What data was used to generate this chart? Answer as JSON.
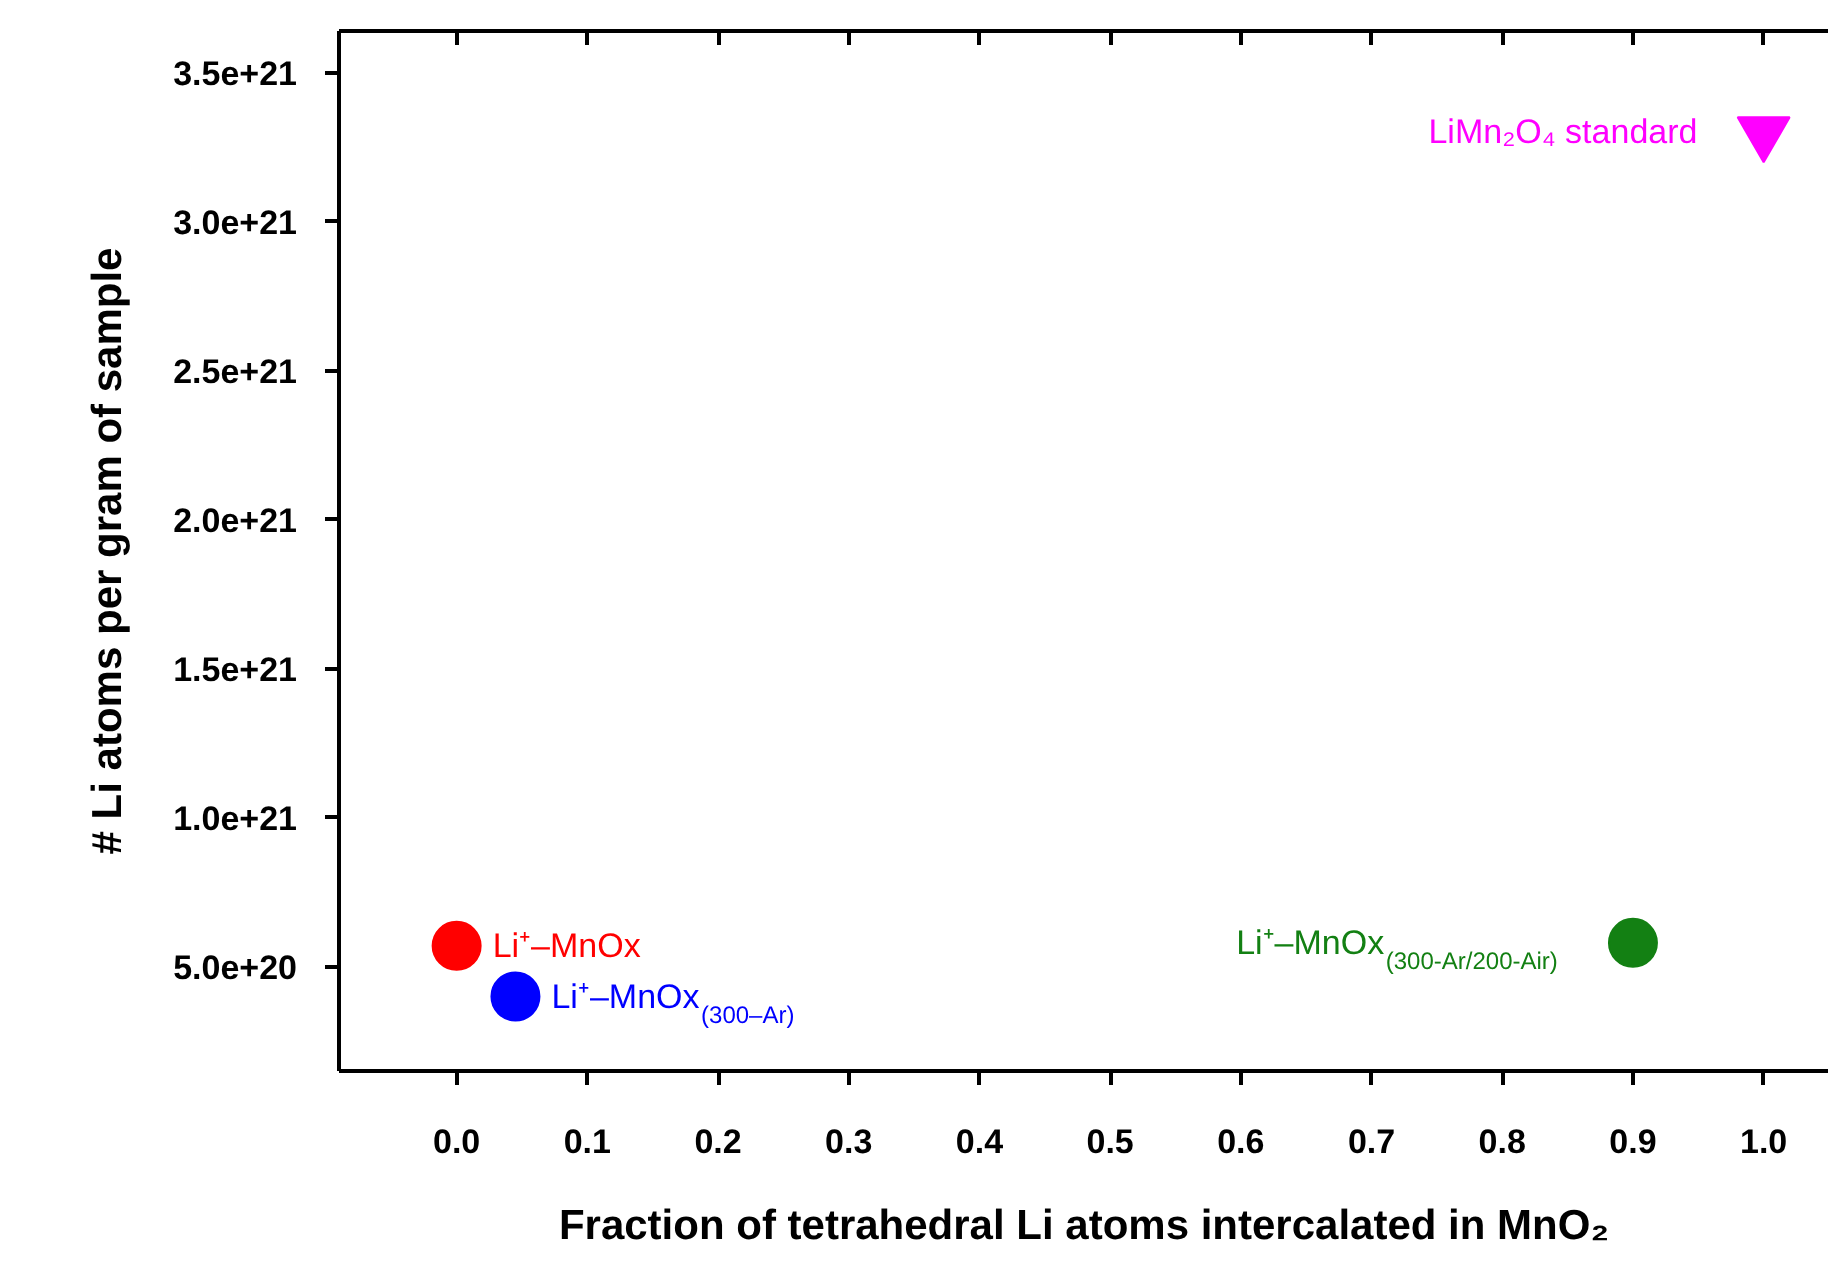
{
  "chart_data": {
    "type": "scatter",
    "xlabel": "Fraction of tetrahedral Li atoms intercalated in MnO₂",
    "ylabel": "# Li atoms per gram of sample",
    "xlim": [
      -0.09,
      1.05
    ],
    "ylim": [
      1.5e+20,
      3.64e+21
    ],
    "xticks": [
      {
        "value": 0,
        "label": "0.0"
      },
      {
        "value": 0.1,
        "label": "0.1"
      },
      {
        "value": 0.2,
        "label": "0.2"
      },
      {
        "value": 0.3,
        "label": "0.3"
      },
      {
        "value": 0.4,
        "label": "0.4"
      },
      {
        "value": 0.5,
        "label": "0.5"
      },
      {
        "value": 0.6,
        "label": "0.6"
      },
      {
        "value": 0.7,
        "label": "0.7"
      },
      {
        "value": 0.8,
        "label": "0.8"
      },
      {
        "value": 0.9,
        "label": "0.9"
      },
      {
        "value": 1.0,
        "label": "1.0"
      }
    ],
    "yticks": [
      {
        "value": 5e+20,
        "label": "5.0e+20"
      },
      {
        "value": 1e+21,
        "label": "1.0e+21"
      },
      {
        "value": 1.5e+21,
        "label": "1.5e+21"
      },
      {
        "value": 2e+21,
        "label": "2.0e+21"
      },
      {
        "value": 2.5e+21,
        "label": "2.5e+21"
      },
      {
        "value": 3e+21,
        "label": "3.0e+21"
      },
      {
        "value": 3.5e+21,
        "label": "3.5e+21"
      }
    ],
    "grid": false,
    "series": [
      {
        "name": "Li⁺–MnOx",
        "color": "#ff0000",
        "x": [
          0.0
        ],
        "values": [
          5.7e+20
        ],
        "marker": "circle"
      },
      {
        "name": "Li⁺–MnOx$_{(300–Ar)}$",
        "color": "#0000ff",
        "x": [
          0.045
        ],
        "values": [
          4e+20
        ],
        "marker": "circle"
      },
      {
        "name": "Li⁺–MnOx$_{(300-Ar/200-Air)}$",
        "color": "#138013",
        "x": [
          0.9
        ],
        "values": [
          5.8e+20
        ],
        "marker": "circle"
      },
      {
        "name": "LiMn₂O₄ standard",
        "color": "#ff00ff",
        "x": [
          1.0
        ],
        "values": [
          3.3e+21
        ],
        "marker": "triangle"
      }
    ]
  }
}
